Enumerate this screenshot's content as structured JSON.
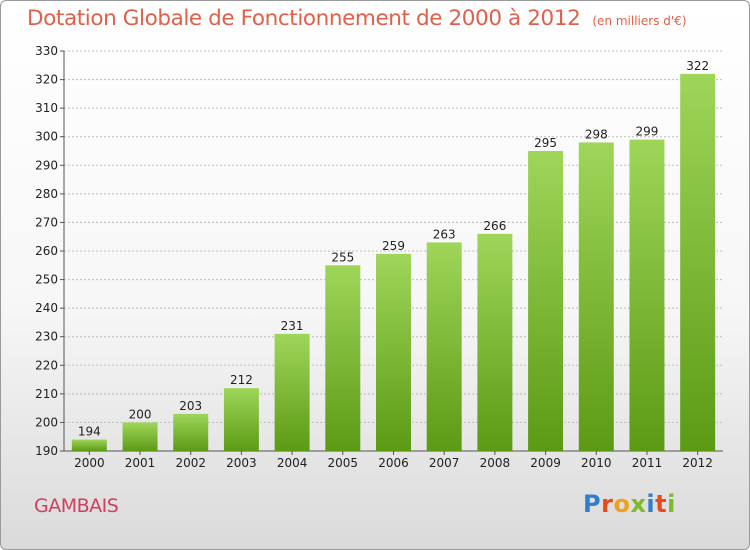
{
  "header": {
    "title": "Dotation Globale de Fonctionnement de 2000 à 2012",
    "unit": "(en milliers d'€)"
  },
  "footer": {
    "commune": "GAMBAIS",
    "logo_text": "Proxiti",
    "logo_colors": [
      "#2f7fd0",
      "#e8491d",
      "#f0a020",
      "#7dbb2a",
      "#2f7fd0",
      "#e8491d",
      "#7dbb2a"
    ]
  },
  "colors": {
    "bar_top": "#9fd65a",
    "bar_bottom": "#5c9a14",
    "title": "#e0604a",
    "commune": "#d04060",
    "grid": "#bdbdbd"
  },
  "chart_data": {
    "type": "bar",
    "title": "Dotation Globale de Fonctionnement de 2000 à 2012",
    "subtitle": "(en milliers d'€)",
    "xlabel": "",
    "ylabel": "",
    "categories": [
      "2000",
      "2001",
      "2002",
      "2003",
      "2004",
      "2005",
      "2006",
      "2007",
      "2008",
      "2009",
      "2010",
      "2011",
      "2012"
    ],
    "values": [
      194,
      200,
      203,
      212,
      231,
      255,
      259,
      263,
      266,
      295,
      298,
      299,
      322
    ],
    "ylim": [
      190,
      330
    ],
    "yticks": [
      190,
      200,
      210,
      220,
      230,
      240,
      250,
      260,
      270,
      280,
      290,
      300,
      310,
      320,
      330
    ],
    "grid": true,
    "legend": "none"
  }
}
